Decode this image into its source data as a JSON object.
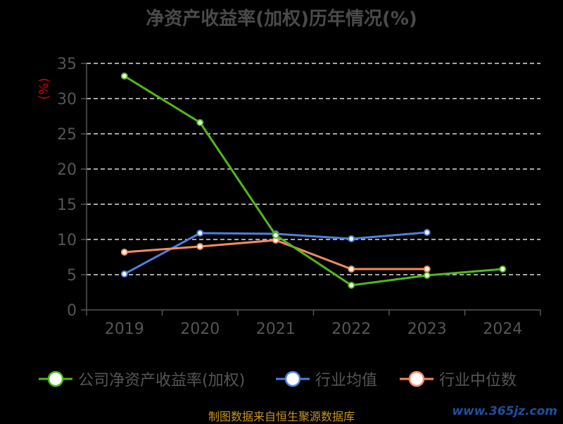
{
  "chart_data": {
    "type": "line",
    "title": "净资产收益率(加权)历年情况(%)",
    "ylabel": "(%)",
    "ylim": [
      0,
      35
    ],
    "yticks": [
      0,
      5,
      10,
      15,
      20,
      25,
      30,
      35
    ],
    "categories": [
      "2019",
      "2020",
      "2021",
      "2022",
      "2023",
      "2024"
    ],
    "grid": true,
    "legend_position": "bottom",
    "series": [
      {
        "name": "公司净资产收益率(加权)",
        "color": "#52b81c",
        "values": [
          33.2,
          26.6,
          10.6,
          3.5,
          4.9,
          5.8
        ]
      },
      {
        "name": "行业均值",
        "color": "#4f7fde",
        "values": [
          5.1,
          10.9,
          10.8,
          10.1,
          11.0,
          null
        ]
      },
      {
        "name": "行业中位数",
        "color": "#f58b5f",
        "values": [
          8.2,
          9.0,
          9.9,
          5.8,
          5.8,
          null
        ]
      }
    ]
  },
  "footer": "制图数据来自恒生聚源数据库",
  "watermark": "www.365jz.com"
}
